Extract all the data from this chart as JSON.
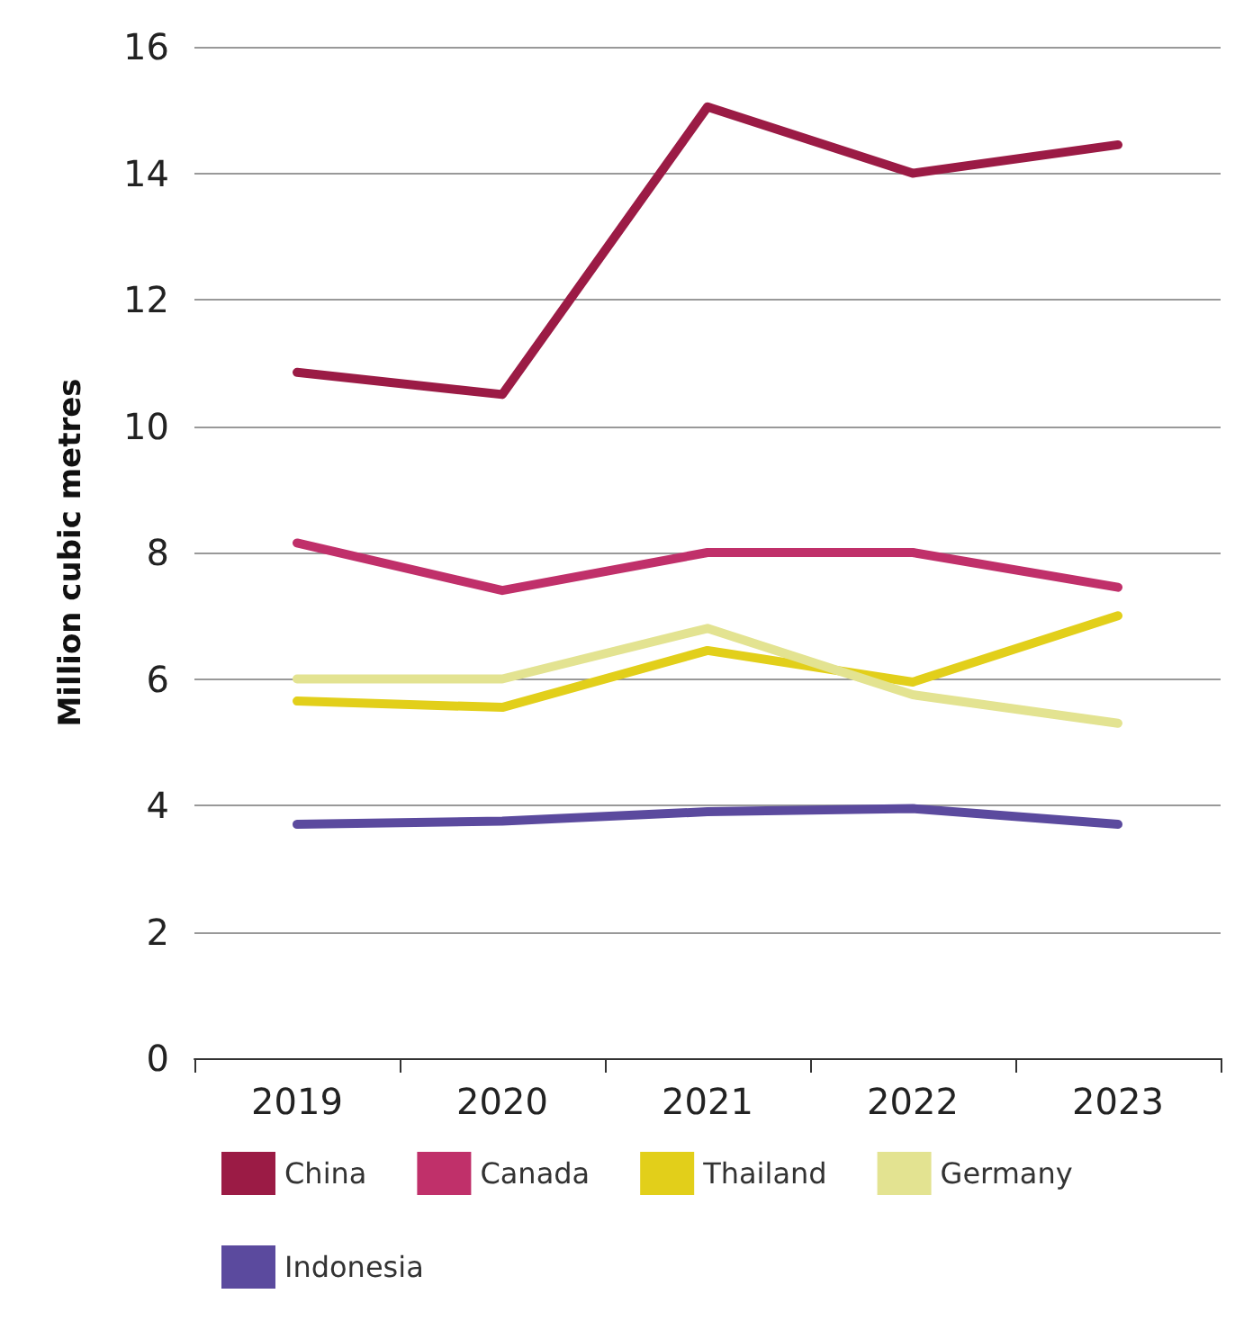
{
  "chart_data": {
    "type": "line",
    "ylabel": "Million cubic metres",
    "categories": [
      "2019",
      "2020",
      "2021",
      "2022",
      "2023"
    ],
    "series": [
      {
        "name": "China",
        "color": "#9b1b45",
        "values": [
          10.85,
          10.5,
          15.05,
          14.0,
          14.45
        ]
      },
      {
        "name": "Canada",
        "color": "#c0306a",
        "values": [
          8.15,
          7.4,
          8.0,
          8.0,
          7.45
        ]
      },
      {
        "name": "Thailand",
        "color": "#e2cf1a",
        "values": [
          5.65,
          5.55,
          6.45,
          5.95,
          7.0
        ]
      },
      {
        "name": "Germany",
        "color": "#e3e391",
        "values": [
          6.0,
          6.0,
          6.8,
          5.75,
          5.3
        ]
      },
      {
        "name": "Indonesia",
        "color": "#5b4a9e",
        "values": [
          3.7,
          3.75,
          3.9,
          3.95,
          3.7
        ]
      }
    ],
    "ylim": [
      0,
      16
    ],
    "yticks": [
      0,
      2,
      4,
      6,
      8,
      10,
      12,
      14,
      16
    ],
    "grid": "y",
    "legend": "bottom",
    "marker": "none",
    "line_style": "solid"
  }
}
